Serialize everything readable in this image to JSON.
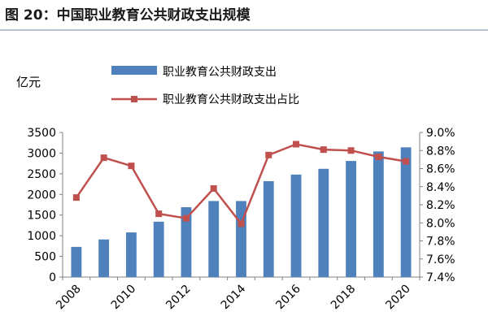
{
  "figure_title": "图 20：中国职业教育公共财政支出规模",
  "chart_data": {
    "type": "bar",
    "unit_label": "亿元",
    "x": [
      "2008",
      "2009",
      "2010",
      "2011",
      "2012",
      "2013",
      "2014",
      "2015",
      "2016",
      "2017",
      "2018",
      "2019",
      "2020"
    ],
    "x_tick_labels": [
      "2008",
      "2010",
      "2012",
      "2014",
      "2016",
      "2018",
      "2020"
    ],
    "series": [
      {
        "name": "职业教育公共财政支出",
        "type": "bar",
        "axis": "left",
        "color": "#4f81bd",
        "values": [
          730,
          910,
          1080,
          1340,
          1690,
          1840,
          1840,
          2320,
          2480,
          2620,
          2810,
          3040,
          3140
        ]
      },
      {
        "name": "职业教育公共财政支出占比",
        "type": "line",
        "axis": "right",
        "color": "#c0504d",
        "values": [
          8.28,
          8.72,
          8.63,
          8.1,
          8.05,
          8.38,
          7.99,
          8.75,
          8.87,
          8.81,
          8.8,
          8.73,
          8.68
        ]
      }
    ],
    "y_left": {
      "min": 0,
      "max": 3500,
      "ticks": [
        "0",
        "500",
        "1000",
        "1500",
        "2000",
        "2500",
        "3000",
        "3500"
      ]
    },
    "y_right": {
      "min": 7.4,
      "max": 9.0,
      "ticks": [
        "7.4%",
        "7.6%",
        "7.8%",
        "8.0%",
        "8.2%",
        "8.4%",
        "8.6%",
        "8.8%",
        "9.0%"
      ]
    },
    "legend": "top",
    "grid": false
  }
}
